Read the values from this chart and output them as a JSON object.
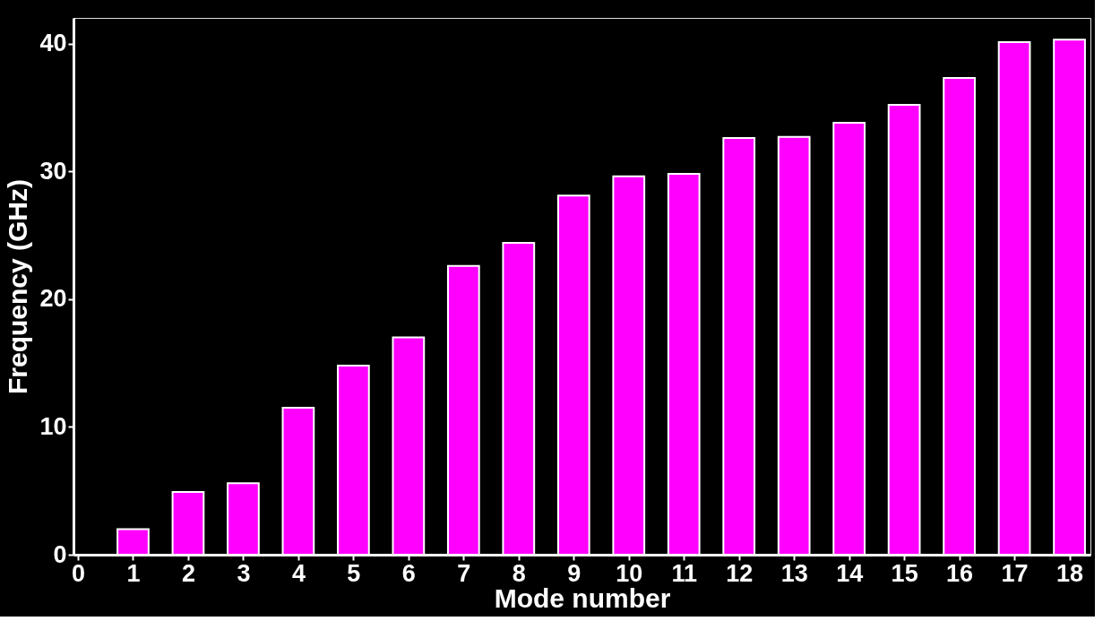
{
  "chart_data": {
    "type": "bar",
    "xlabel": "Mode number",
    "ylabel": "Frequency (GHz)",
    "x": [
      1,
      2,
      3,
      4,
      5,
      6,
      7,
      8,
      9,
      10,
      11,
      12,
      13,
      14,
      15,
      16,
      17,
      18
    ],
    "values": [
      2.0,
      4.9,
      5.6,
      11.5,
      14.8,
      17.0,
      22.6,
      24.4,
      28.1,
      29.6,
      29.8,
      32.6,
      32.7,
      33.8,
      35.2,
      37.3,
      40.1,
      40.3
    ],
    "color": "#ff00ff",
    "xlim": [
      0,
      18.3
    ],
    "xticks": [
      0,
      1,
      2,
      3,
      4,
      5,
      6,
      7,
      8,
      9,
      10,
      11,
      12,
      13,
      14,
      15,
      16,
      17,
      18
    ],
    "ylim": [
      0,
      42
    ],
    "yticks": [
      0,
      10,
      20,
      30,
      40
    ],
    "grid": false
  }
}
